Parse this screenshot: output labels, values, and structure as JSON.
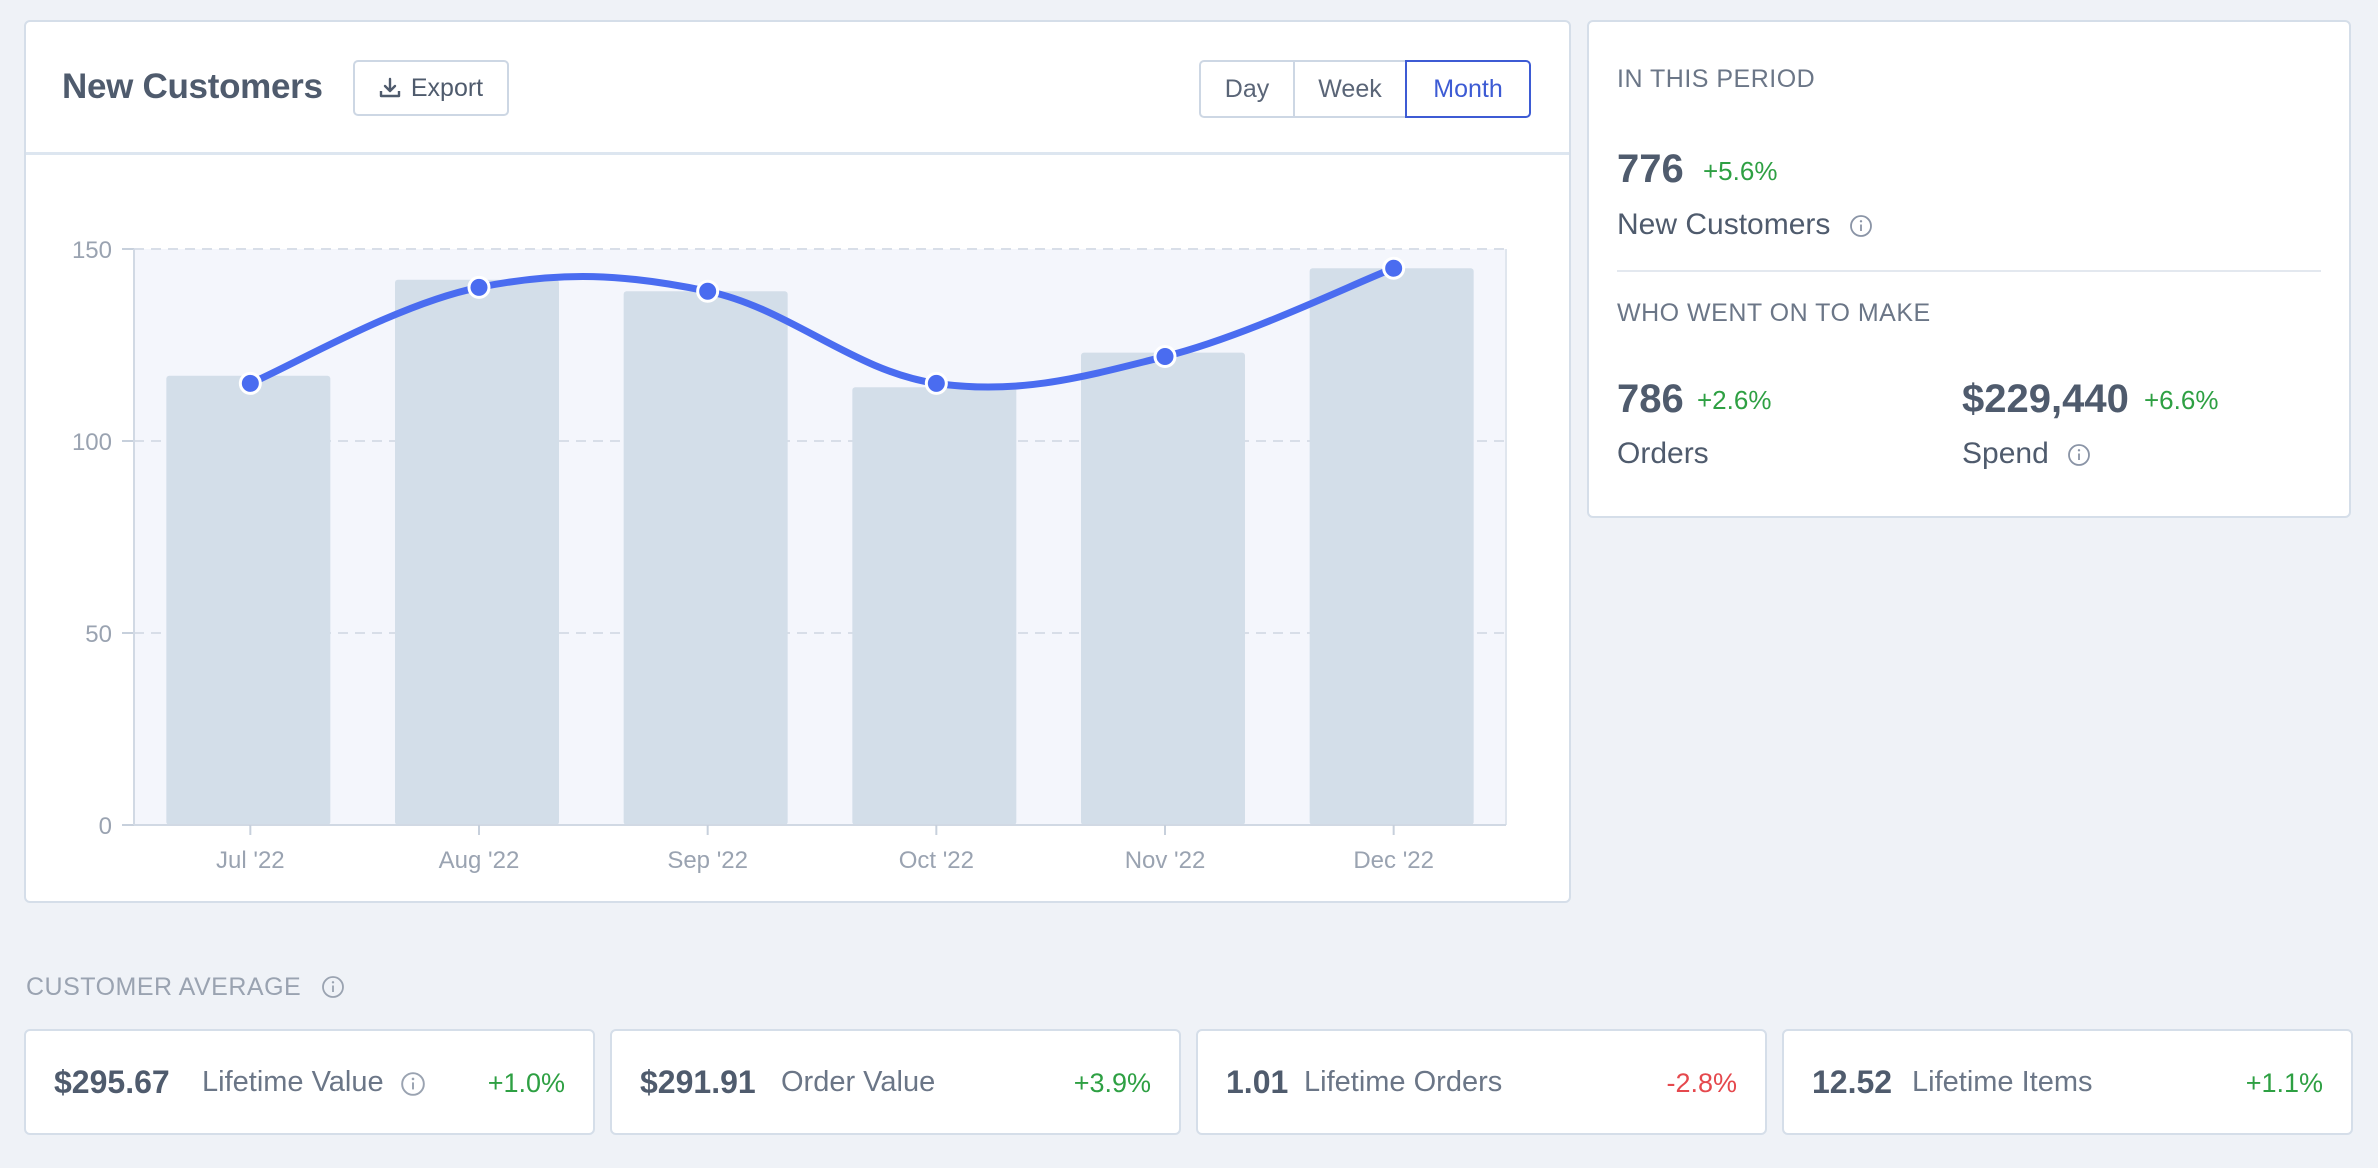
{
  "chart_card": {
    "title": "New Customers",
    "export_label": "Export",
    "ranges": [
      "Day",
      "Week",
      "Month"
    ],
    "active_range": "Month"
  },
  "chart_data": {
    "type": "bar",
    "categories": [
      "Jul '22",
      "Aug '22",
      "Sep '22",
      "Oct '22",
      "Nov '22",
      "Dec '22"
    ],
    "series": [
      {
        "type": "bar",
        "values": [
          117,
          142,
          139,
          114,
          123,
          145
        ]
      },
      {
        "type": "line",
        "values": [
          115,
          140,
          139,
          115,
          122,
          145
        ]
      }
    ],
    "ylim": [
      0,
      150
    ],
    "yticks": [
      0,
      50,
      100,
      150
    ],
    "grid": true,
    "colors": {
      "bar": "#d3dee9",
      "line": "#4a6cf0",
      "plot_bg": "#f4f6fc"
    }
  },
  "summary": {
    "period_title": "IN THIS PERIOD",
    "new_customers_value": "776",
    "new_customers_delta": "+5.6%",
    "new_customers_label": "New Customers",
    "follow_title": "WHO WENT ON TO MAKE",
    "orders_value": "786",
    "orders_delta": "+2.6%",
    "orders_label": "Orders",
    "spend_value": "$229,440",
    "spend_delta": "+6.6%",
    "spend_label": "Spend"
  },
  "customer_average": {
    "title": "CUSTOMER AVERAGE",
    "cards": [
      {
        "value": "$295.67",
        "label": "Lifetime Value",
        "delta": "+1.0%"
      },
      {
        "value": "$291.91",
        "label": "Order Value",
        "delta": "+3.9%"
      },
      {
        "value": "1.01",
        "label": "Lifetime Orders",
        "delta": "-2.8%"
      },
      {
        "value": "12.52",
        "label": "Lifetime Items",
        "delta": "+1.1%"
      }
    ]
  },
  "colors": {
    "accent": "#3d5bd4",
    "positive": "#2ea043",
    "negative": "#e5484d"
  }
}
